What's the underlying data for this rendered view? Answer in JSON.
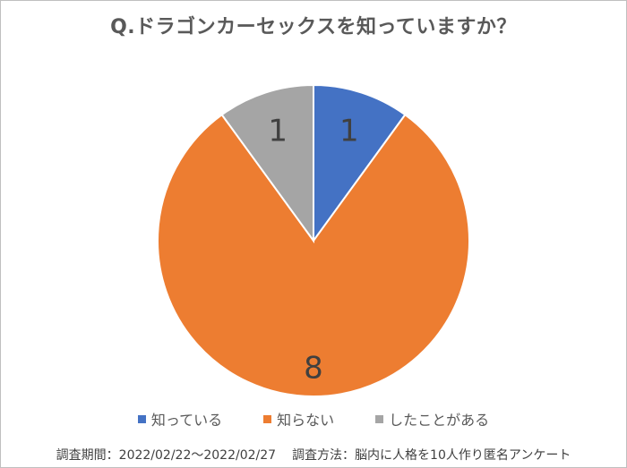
{
  "chart_data": {
    "type": "pie",
    "title": "Q.ドラゴンカーセックスを知っていますか？",
    "categories": [
      "知っている",
      "知らない",
      "したことがある"
    ],
    "values": [
      1,
      8,
      1
    ],
    "data_labels": [
      "1",
      "8",
      "1"
    ],
    "colors": [
      "#4472C4",
      "#ED7D31",
      "#A5A5A5"
    ],
    "legend_position": "bottom"
  },
  "footer": {
    "period": "調査期間：2022/02/22～2022/02/27",
    "method": "調査方法：脳内に人格を10人作り匿名アンケート"
  }
}
